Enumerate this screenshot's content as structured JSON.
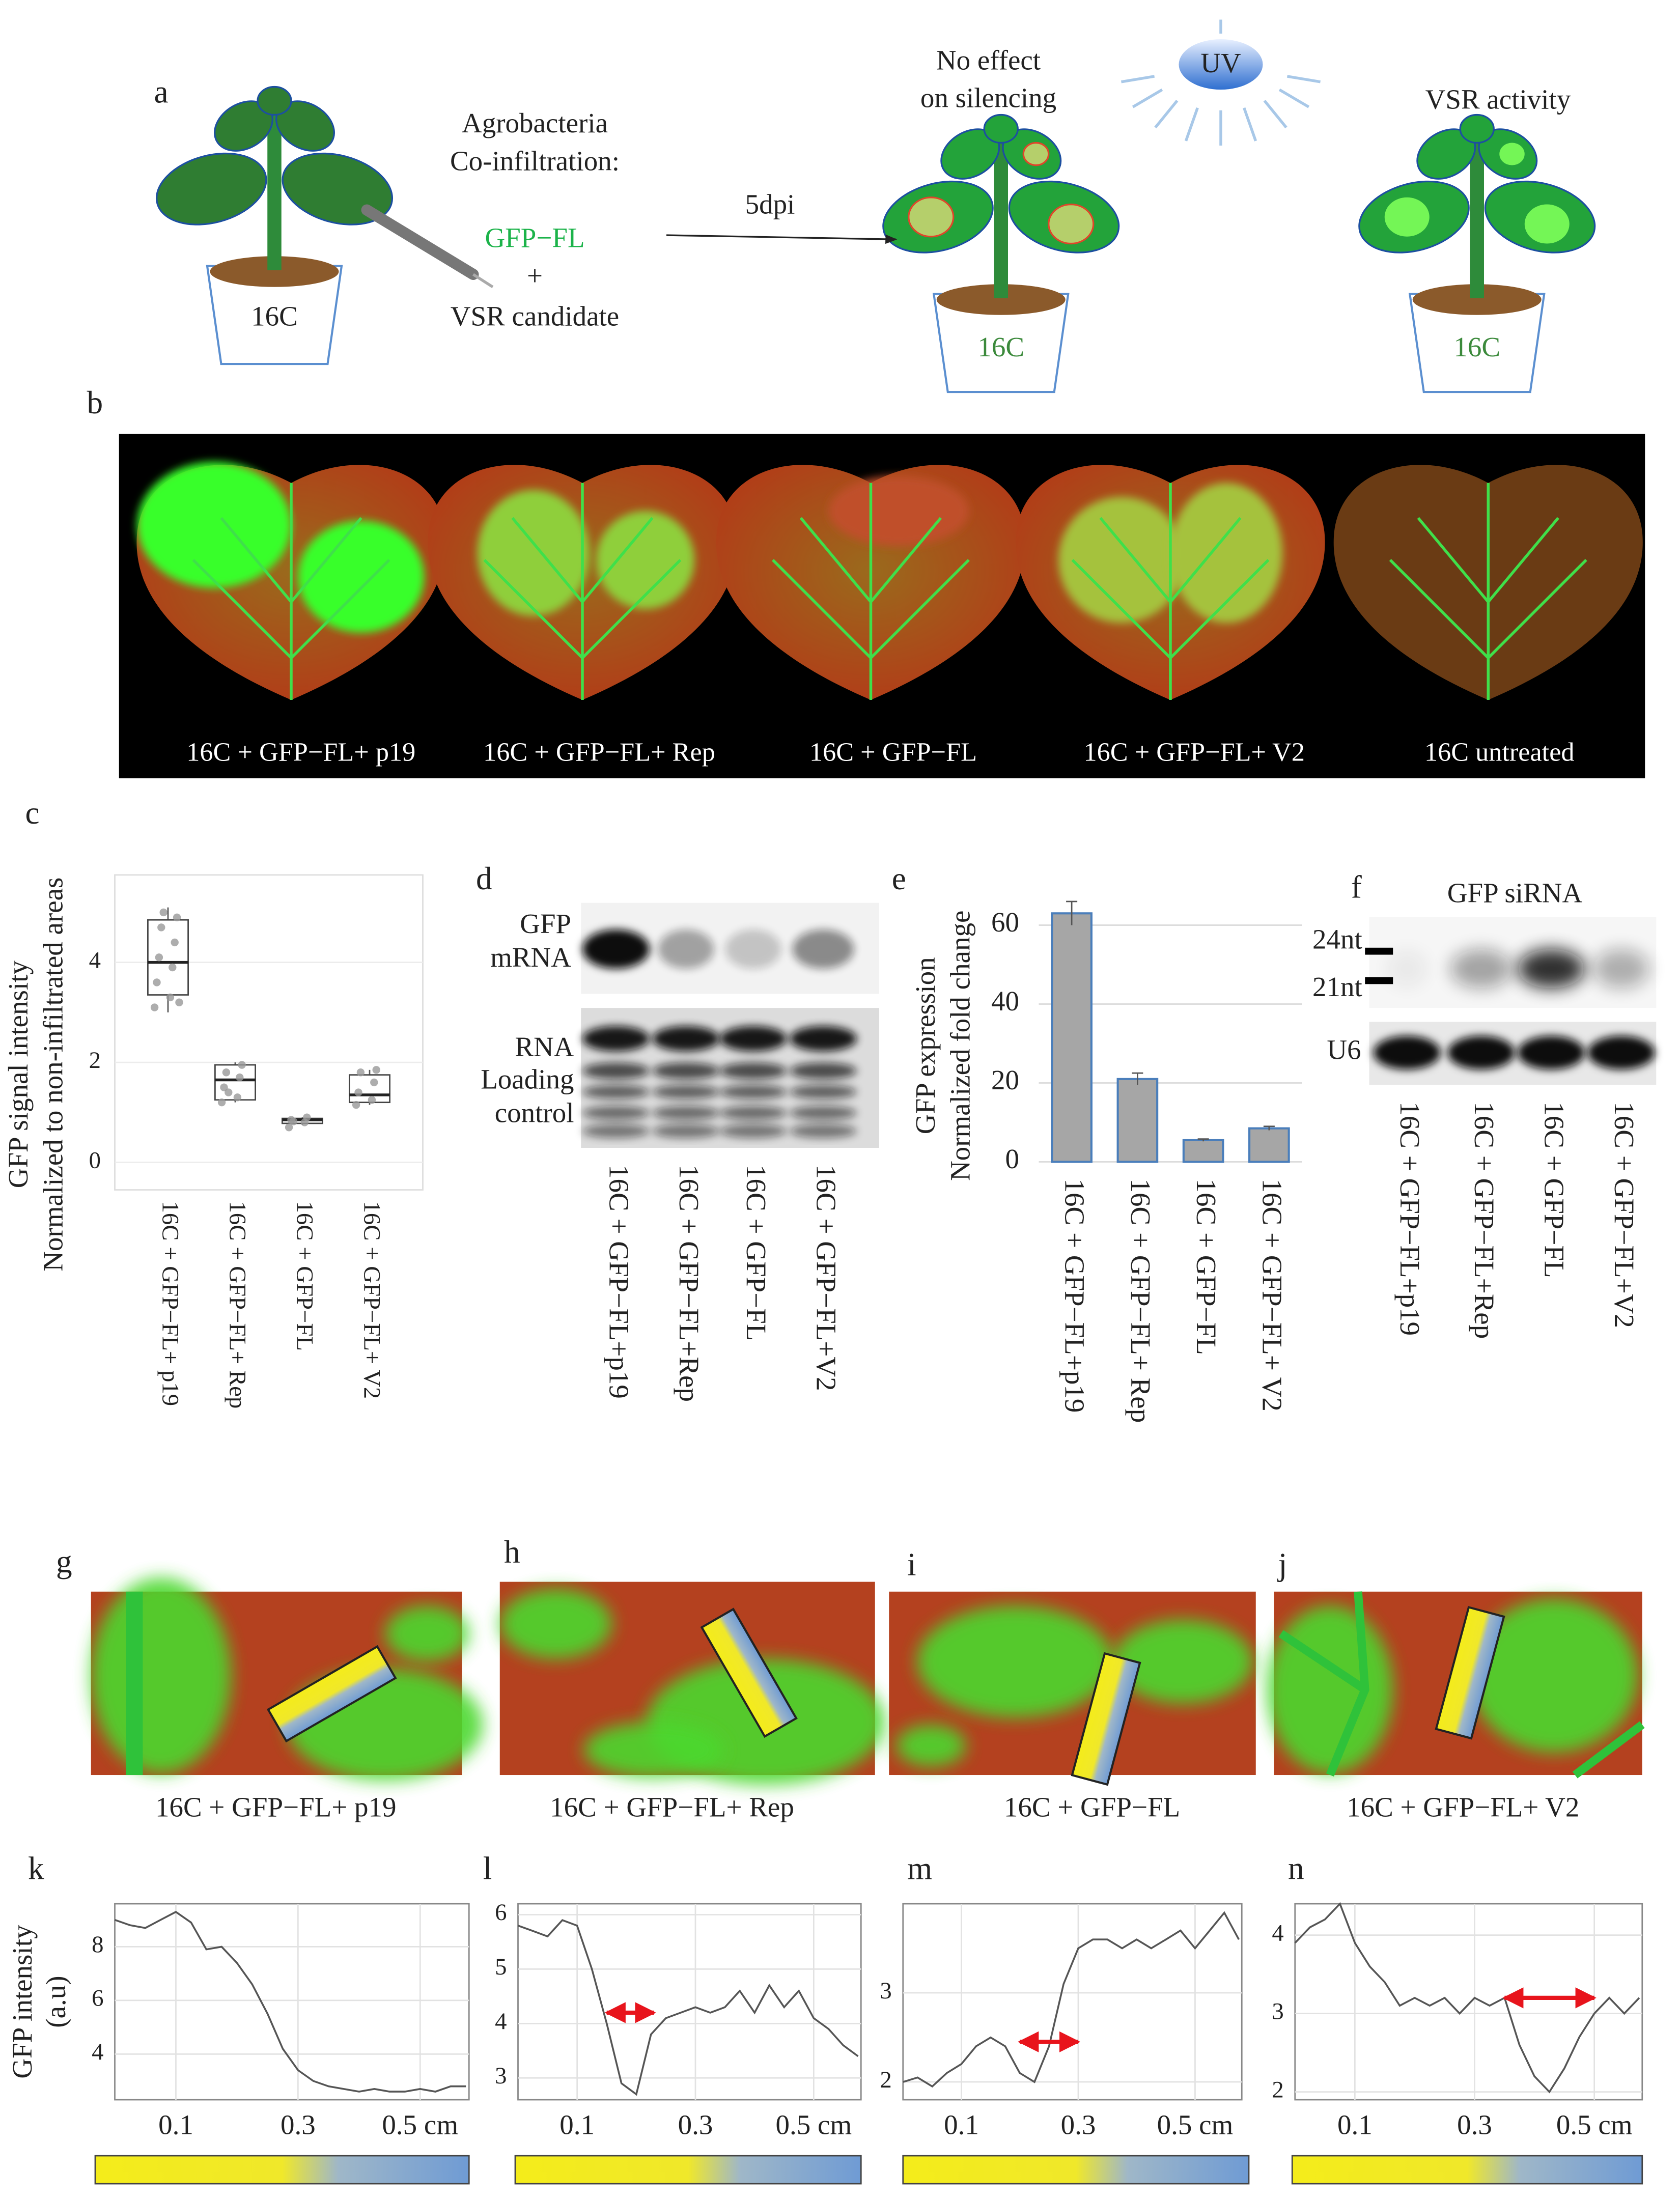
{
  "panel_a": {
    "label": "a",
    "agro": "Agrobacteria",
    "coinf": "Co-infiltration:",
    "construct": "GFP−FL",
    "plus": "+",
    "candidate": "VSR candidate",
    "time": "5dpi",
    "no_effect": "No effect",
    "on_silencing": "on silencing",
    "uv": "UV",
    "vsr_activity": "VSR activity",
    "pots": [
      "16C",
      "16C",
      "16C"
    ]
  },
  "panel_b": {
    "label": "b",
    "captions": [
      "16C +  GFP−FL+ p19",
      "16C +  GFP−FL+ Rep",
      "16C +  GFP−FL",
      "16C +  GFP−FL+ V2",
      "16C untreated"
    ]
  },
  "panel_d": {
    "label": "d",
    "row1": [
      "GFP",
      "mRNA"
    ],
    "row2": [
      "RNA",
      "Loading",
      "control"
    ],
    "lanes": [
      "16C + GFP−FL+p19",
      "16C + GFP−FL+Rep",
      "16C + GFP−FL",
      "16C + GFP−FL+V2"
    ]
  },
  "panel_f": {
    "label": "f",
    "title": "GFP siRNA",
    "m24": "24nt",
    "m21": "21nt",
    "u6": "U6",
    "lanes": [
      "16C + GFP−FL+p19",
      "16C + GFP−FL+Rep",
      "16C + GFP−FL",
      "16C + GFP−FL+V2"
    ]
  },
  "panel_gj": {
    "labels": [
      "g",
      "h",
      "i",
      "j"
    ],
    "captions": [
      "16C +  GFP−FL+ p19",
      "16C +  GFP−FL+ Rep",
      "16C +  GFP−FL",
      "16C +  GFP−FL+ V2"
    ]
  },
  "chart_data": [
    {
      "type": "box",
      "label": "c",
      "ylabel": [
        "GFP signal intensity",
        "Normalized to non-infiltrated areas"
      ],
      "categories": [
        "16C + GFP−FL+ p19",
        "16C + GFP−FL+ Rep",
        "16C + GFP−FL",
        "16C + GFP−FL+ V2"
      ],
      "boxes": [
        {
          "min": 3.0,
          "q1": 3.35,
          "median": 4.0,
          "q3": 4.85,
          "max": 5.1,
          "points": [
            3.1,
            3.3,
            3.6,
            3.9,
            4.1,
            4.4,
            4.7,
            4.9,
            5.0,
            3.2
          ]
        },
        {
          "min": 1.2,
          "q1": 1.25,
          "median": 1.65,
          "q3": 1.95,
          "max": 2.0,
          "points": [
            1.2,
            1.3,
            1.5,
            1.7,
            1.8,
            1.95,
            1.4
          ]
        },
        {
          "min": 0.75,
          "q1": 0.78,
          "median": 0.85,
          "q3": 0.88,
          "max": 0.9,
          "points": [
            0.7,
            0.8,
            0.85,
            0.9,
            0.82
          ]
        },
        {
          "min": 1.15,
          "q1": 1.2,
          "median": 1.35,
          "q3": 1.75,
          "max": 1.85,
          "points": [
            1.15,
            1.25,
            1.4,
            1.6,
            1.8,
            1.85
          ]
        }
      ],
      "color": "#999999",
      "ylim": [
        -0.55,
        5.75
      ],
      "yticks": [
        0,
        2,
        4
      ],
      "grid": true
    },
    {
      "type": "bar",
      "label": "e",
      "ylabel": [
        "GFP expression",
        "Normalized fold change"
      ],
      "categories": [
        "16C + GFP−FL+p19",
        "16C + GFP−FL+ Rep",
        "16C + GFP−FL",
        "16C + GFP−FL+ V2"
      ],
      "values": [
        63,
        21,
        5.5,
        8.5
      ],
      "errors": [
        3,
        1.5,
        0.3,
        0.5
      ],
      "color": "#a6a6a6",
      "edge_color": "#4a7ebb",
      "ylim": [
        0,
        66
      ],
      "yticks": [
        0,
        20,
        40,
        60
      ],
      "grid": true
    },
    {
      "type": "line",
      "label": "k",
      "ylabel": [
        "GFP intensity",
        "(a.u)"
      ],
      "x": [
        0,
        0.025,
        0.05,
        0.075,
        0.1,
        0.125,
        0.15,
        0.175,
        0.2,
        0.225,
        0.25,
        0.275,
        0.3,
        0.325,
        0.35,
        0.375,
        0.4,
        0.425,
        0.45,
        0.475,
        0.5,
        0.525,
        0.55,
        0.575
      ],
      "values": [
        9.0,
        8.8,
        8.7,
        9.0,
        9.3,
        8.9,
        7.9,
        8.0,
        7.4,
        6.6,
        5.5,
        4.2,
        3.4,
        3.0,
        2.8,
        2.7,
        2.6,
        2.7,
        2.6,
        2.6,
        2.7,
        2.6,
        2.8,
        2.8
      ],
      "color": "#555555",
      "xlim": [
        0,
        0.58
      ],
      "xticks": [
        0.1,
        0.3,
        {
          "value": 0.5,
          "label": "0.5 cm"
        }
      ],
      "ylim": [
        2.3,
        9.6
      ],
      "yticks": [
        4,
        6,
        8
      ],
      "grid": true
    },
    {
      "type": "line",
      "label": "l",
      "x": [
        0,
        0.025,
        0.05,
        0.075,
        0.1,
        0.125,
        0.15,
        0.175,
        0.2,
        0.225,
        0.25,
        0.275,
        0.3,
        0.325,
        0.35,
        0.375,
        0.4,
        0.425,
        0.45,
        0.475,
        0.5,
        0.525,
        0.55,
        0.575
      ],
      "values": [
        5.8,
        5.7,
        5.6,
        5.9,
        5.8,
        5.0,
        4.0,
        2.9,
        2.7,
        3.8,
        4.1,
        4.2,
        4.3,
        4.2,
        4.3,
        4.6,
        4.2,
        4.7,
        4.3,
        4.6,
        4.1,
        3.9,
        3.6,
        3.4
      ],
      "color": "#555555",
      "xlim": [
        0,
        0.58
      ],
      "xticks": [
        0.1,
        0.3,
        {
          "value": 0.5,
          "label": "0.5 cm"
        }
      ],
      "ylim": [
        2.6,
        6.2
      ],
      "yticks": [
        3,
        4,
        5,
        6
      ],
      "grid": true,
      "arrow_x": [
        0.15,
        0.23
      ],
      "arrow_y": 4.2,
      "arrow_color": "#e8141c"
    },
    {
      "type": "line",
      "label": "m",
      "x": [
        0,
        0.025,
        0.05,
        0.075,
        0.1,
        0.125,
        0.15,
        0.175,
        0.2,
        0.225,
        0.25,
        0.275,
        0.3,
        0.325,
        0.35,
        0.375,
        0.4,
        0.425,
        0.45,
        0.475,
        0.5,
        0.525,
        0.55,
        0.575
      ],
      "values": [
        2.0,
        2.05,
        1.95,
        2.1,
        2.2,
        2.4,
        2.5,
        2.4,
        2.1,
        2.0,
        2.4,
        3.1,
        3.5,
        3.6,
        3.6,
        3.5,
        3.6,
        3.5,
        3.6,
        3.7,
        3.5,
        3.7,
        3.9,
        3.6
      ],
      "color": "#555555",
      "xlim": [
        0,
        0.58
      ],
      "xticks": [
        0.1,
        0.3,
        {
          "value": 0.5,
          "label": "0.5 cm"
        }
      ],
      "ylim": [
        1.8,
        4.0
      ],
      "yticks": [
        2,
        3
      ],
      "grid": true,
      "arrow_x": [
        0.2,
        0.3
      ],
      "arrow_y": 2.45,
      "arrow_color": "#e8141c"
    },
    {
      "type": "line",
      "label": "n",
      "x": [
        0,
        0.025,
        0.05,
        0.075,
        0.1,
        0.125,
        0.15,
        0.175,
        0.2,
        0.225,
        0.25,
        0.275,
        0.3,
        0.325,
        0.35,
        0.375,
        0.4,
        0.425,
        0.45,
        0.475,
        0.5,
        0.525,
        0.55,
        0.575
      ],
      "values": [
        3.9,
        4.1,
        4.2,
        4.4,
        3.9,
        3.6,
        3.4,
        3.1,
        3.2,
        3.1,
        3.2,
        3.0,
        3.2,
        3.1,
        3.2,
        2.6,
        2.2,
        2.0,
        2.3,
        2.7,
        3.0,
        3.2,
        3.0,
        3.2
      ],
      "color": "#555555",
      "xlim": [
        0,
        0.58
      ],
      "xticks": [
        0.1,
        0.3,
        {
          "value": 0.5,
          "label": "0.5 cm"
        }
      ],
      "ylim": [
        1.9,
        4.4
      ],
      "yticks": [
        2,
        3,
        4
      ],
      "grid": true,
      "arrow_x": [
        0.35,
        0.5
      ],
      "arrow_y": 3.2,
      "arrow_color": "#e8141c"
    }
  ]
}
